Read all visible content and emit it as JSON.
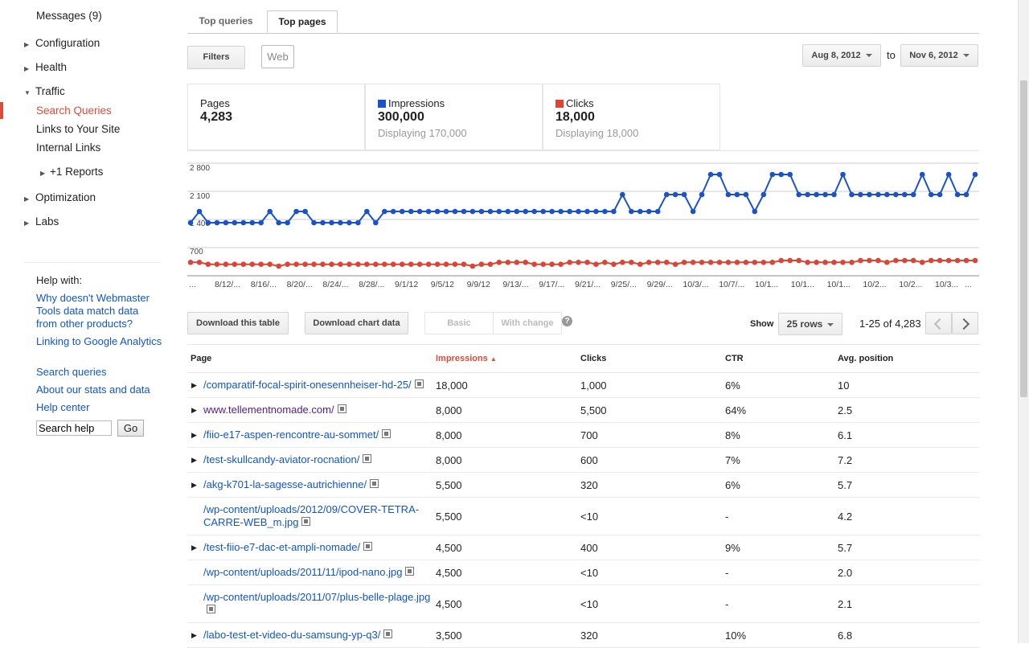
{
  "sidebar": {
    "messages": "Messages (9)",
    "items": [
      {
        "label": "Configuration"
      },
      {
        "label": "Health"
      },
      {
        "label": "Traffic"
      },
      {
        "label": "Optimization"
      },
      {
        "label": "Labs"
      }
    ],
    "traffic_sub": [
      {
        "label": "Search Queries"
      },
      {
        "label": "Links to Your Site"
      },
      {
        "label": "Internal Links"
      },
      {
        "label": "+1 Reports"
      }
    ],
    "help_title": "Help with:",
    "help_links": [
      {
        "label": "Why doesn't Webmaster Tools data match data from other products?"
      },
      {
        "label": "Linking to Google Analytics"
      },
      {
        "label": "Search queries"
      },
      {
        "label": "About our stats and data"
      },
      {
        "label": "Help center"
      }
    ],
    "search_value": "Search help",
    "go_label": "Go"
  },
  "tabs": [
    {
      "label": "Top queries"
    },
    {
      "label": "Top pages"
    }
  ],
  "toolbar": {
    "filters_label": "Filters",
    "web_chip": "Web",
    "date_from": "Aug 8, 2012",
    "to_label": "to",
    "date_to": "Nov 6, 2012"
  },
  "stats": {
    "pages_label": "Pages",
    "pages_value": "4,283",
    "impressions_label": "Impressions",
    "impressions_value": "300,000",
    "impressions_sub": "Displaying 170,000",
    "clicks_label": "Clicks",
    "clicks_value": "18,000",
    "clicks_sub": "Displaying 18,000"
  },
  "colors": {
    "impressions": "#1a53c8",
    "clicks": "#dd4433",
    "active": "#dd4b39",
    "link": "#1155cc"
  },
  "chart_data": {
    "type": "line",
    "y_ticks": [
      "2 800",
      "2 100",
      "1 400",
      "700"
    ],
    "x_tick_labels": [
      "...",
      "8/12/...",
      "8/16/...",
      "8/20/...",
      "8/24/...",
      "8/28/...",
      "9/1/12",
      "9/5/12",
      "9/9/12",
      "9/13/...",
      "9/17/...",
      "9/21/...",
      "9/25/...",
      "9/29/...",
      "10/3/...",
      "10/7/...",
      "10/1...",
      "10/1...",
      "10/1...",
      "10/2...",
      "10/2...",
      "10/3...",
      "..."
    ],
    "series": [
      {
        "name": "Impressions",
        "values": [
          1400,
          1900,
          1400,
          1400,
          1400,
          1400,
          1400,
          1400,
          1400,
          1900,
          1400,
          1400,
          1900,
          1900,
          1400,
          1400,
          1400,
          1400,
          1400,
          1400,
          1900,
          1400,
          1900,
          1900,
          1900,
          1900,
          1900,
          1900,
          1900,
          1900,
          1900,
          1900,
          1900,
          1900,
          1900,
          1900,
          1900,
          1900,
          1900,
          1900,
          1900,
          1900,
          1900,
          1900,
          1900,
          1900,
          1900,
          1900,
          1900,
          2400,
          1900,
          1900,
          1900,
          1900,
          2400,
          2400,
          2400,
          1900,
          2400,
          2900,
          2900,
          2400,
          2400,
          2400,
          1900,
          2400,
          2900,
          2900,
          2900,
          2400,
          2400,
          2400,
          2400,
          2400,
          2900,
          2400,
          2400,
          2400,
          2400,
          2400,
          2400,
          2400,
          2400,
          2900,
          2400,
          2400,
          2900,
          2400,
          2400,
          2900
        ]
      },
      {
        "name": "Clicks",
        "values": [
          650,
          650,
          600,
          600,
          600,
          600,
          600,
          600,
          600,
          600,
          550,
          600,
          600,
          600,
          600,
          600,
          600,
          600,
          600,
          600,
          600,
          600,
          600,
          600,
          600,
          600,
          600,
          600,
          600,
          600,
          600,
          600,
          550,
          600,
          600,
          650,
          650,
          650,
          650,
          600,
          600,
          600,
          600,
          650,
          650,
          650,
          600,
          650,
          600,
          650,
          650,
          600,
          650,
          650,
          650,
          600,
          650,
          650,
          650,
          650,
          650,
          650,
          650,
          650,
          650,
          650,
          650,
          700,
          700,
          700,
          650,
          650,
          650,
          650,
          650,
          650,
          700,
          700,
          700,
          650,
          700,
          700,
          700,
          650,
          700,
          700,
          700,
          700,
          700,
          700
        ]
      }
    ]
  },
  "table_controls": {
    "download_table": "Download this table",
    "download_chart": "Download chart data",
    "basic": "Basic",
    "with_change": "With change",
    "help": "?",
    "show_label": "Show",
    "rows_value": "25 rows",
    "range": "1-25 of 4,283"
  },
  "table": {
    "headers": {
      "page": "Page",
      "impressions": "Impressions",
      "clicks": "Clicks",
      "ctr": "CTR",
      "position": "Avg. position"
    },
    "rows": [
      {
        "page": "/comparatif-focal-spirit-onesennheiser-hd-25/",
        "impressions": "18,000",
        "clicks": "1,000",
        "ctr": "6%",
        "position": "10"
      },
      {
        "page": "www.tellementnomade.com/",
        "impressions": "8,000",
        "clicks": "5,500",
        "ctr": "64%",
        "position": "2.5"
      },
      {
        "page": "/fiio-e17-aspen-rencontre-au-sommet/",
        "impressions": "8,000",
        "clicks": "700",
        "ctr": "8%",
        "position": "6.1"
      },
      {
        "page": "/test-skullcandy-aviator-rocnation/",
        "impressions": "8,000",
        "clicks": "600",
        "ctr": "7%",
        "position": "7.2"
      },
      {
        "page": "/akg-k701-la-sagesse-autrichienne/",
        "impressions": "5,500",
        "clicks": "320",
        "ctr": "6%",
        "position": "5.7"
      },
      {
        "page": "/wp-content/uploads/2012/09/COVER-TETRA-CARRE-WEB_m.jpg",
        "impressions": "5,500",
        "clicks": "<10",
        "ctr": "-",
        "position": "4.2"
      },
      {
        "page": "/test-fiio-e7-dac-et-ampli-nomade/",
        "impressions": "4,500",
        "clicks": "400",
        "ctr": "9%",
        "position": "5.7"
      },
      {
        "page": "/wp-content/uploads/2011/11/ipod-nano.jpg",
        "impressions": "4,500",
        "clicks": "<10",
        "ctr": "-",
        "position": "2.0"
      },
      {
        "page": "/wp-content/uploads/2011/07/plus-belle-plage.jpg",
        "impressions": "4,500",
        "clicks": "<10",
        "ctr": "-",
        "position": "2.1"
      },
      {
        "page": "/labo-test-et-video-du-samsung-yp-q3/",
        "impressions": "3,500",
        "clicks": "320",
        "ctr": "10%",
        "position": "6.8"
      }
    ]
  }
}
